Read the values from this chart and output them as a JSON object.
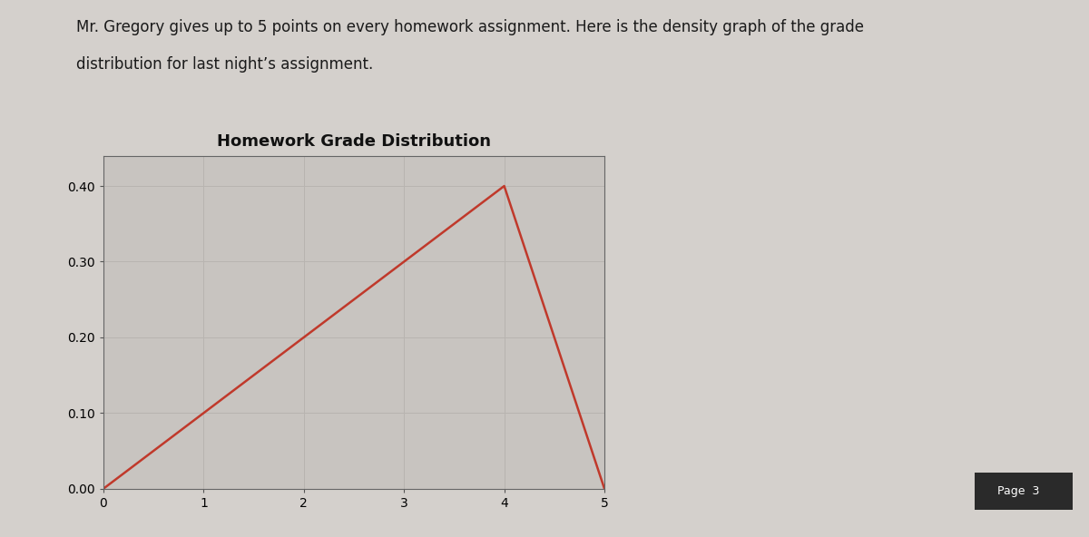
{
  "title": "Homework Grade Distribution",
  "description_line1": "Mr. Gregory gives up to 5 points on every homework assignment. Here is the density graph of the grade",
  "description_line2": "distribution for last night’s assignment.",
  "x_data": [
    0,
    4,
    5
  ],
  "y_data": [
    0.0,
    0.4,
    0.0
  ],
  "line_color": "#c0392b",
  "line_width": 1.8,
  "xlim": [
    0,
    5
  ],
  "ylim": [
    0.0,
    0.44
  ],
  "yticks": [
    0.0,
    0.1,
    0.2,
    0.3,
    0.4
  ],
  "xticks": [
    0,
    1,
    2,
    3,
    4,
    5
  ],
  "bg_color": "#d4d0cc",
  "plot_bg_color": "#c8c4c0",
  "grid_color": "#b8b4b0",
  "title_fontsize": 13,
  "tick_fontsize": 10,
  "desc_fontsize": 12,
  "page_label": "Page",
  "page_number": "3"
}
